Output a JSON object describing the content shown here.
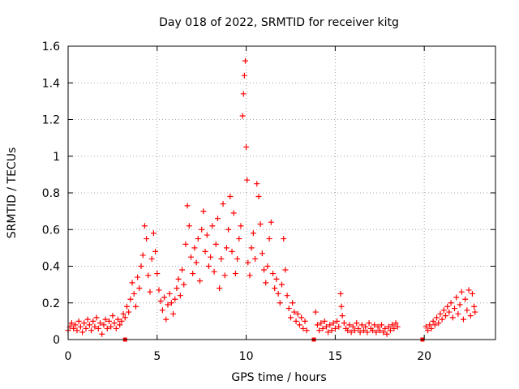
{
  "chart_data": {
    "type": "scatter",
    "title": "Day 018 of 2022, SRMTID for receiver kitg",
    "xlabel": "GPS time / hours",
    "ylabel": "SRMTID / TECUs",
    "xlim": [
      0,
      24
    ],
    "ylim": [
      0,
      1.6
    ],
    "x_ticks": [
      0,
      5,
      10,
      15,
      20
    ],
    "x_tick_labels": [
      "0",
      "5",
      "10",
      "15",
      "20"
    ],
    "y_ticks": [
      0,
      0.2,
      0.4,
      0.6,
      0.8,
      1.0,
      1.2,
      1.4,
      1.6
    ],
    "y_tick_labels": [
      "0",
      "0.2",
      "0.4",
      "0.6",
      "0.8",
      "1",
      "1.2",
      "1.4",
      "1.6"
    ],
    "grid": true,
    "marker": "+",
    "color": "#ff0000",
    "series": [
      {
        "name": "SRMTID",
        "points": [
          [
            0.0,
            0.05
          ],
          [
            0.1,
            0.07
          ],
          [
            0.2,
            0.09
          ],
          [
            0.3,
            0.06
          ],
          [
            0.4,
            0.08
          ],
          [
            0.5,
            0.05
          ],
          [
            0.6,
            0.1
          ],
          [
            0.7,
            0.07
          ],
          [
            0.8,
            0.04
          ],
          [
            0.9,
            0.09
          ],
          [
            1.0,
            0.06
          ],
          [
            1.1,
            0.11
          ],
          [
            1.2,
            0.08
          ],
          [
            1.3,
            0.05
          ],
          [
            1.4,
            0.1
          ],
          [
            1.5,
            0.07
          ],
          [
            1.6,
            0.12
          ],
          [
            1.7,
            0.06
          ],
          [
            1.8,
            0.09
          ],
          [
            1.9,
            0.03
          ],
          [
            2.0,
            0.08
          ],
          [
            2.1,
            0.11
          ],
          [
            2.2,
            0.06
          ],
          [
            2.3,
            0.1
          ],
          [
            2.4,
            0.07
          ],
          [
            2.5,
            0.13
          ],
          [
            2.6,
            0.09
          ],
          [
            2.7,
            0.06
          ],
          [
            2.8,
            0.11
          ],
          [
            2.9,
            0.08
          ],
          [
            3.0,
            0.1
          ],
          [
            3.1,
            0.14
          ],
          [
            3.2,
            0.12
          ],
          [
            3.3,
            0.18
          ],
          [
            3.4,
            0.15
          ],
          [
            3.5,
            0.22
          ],
          [
            3.6,
            0.31
          ],
          [
            3.7,
            0.25
          ],
          [
            3.8,
            0.18
          ],
          [
            3.9,
            0.34
          ],
          [
            4.0,
            0.28
          ],
          [
            4.1,
            0.4
          ],
          [
            4.2,
            0.46
          ],
          [
            4.3,
            0.62
          ],
          [
            4.4,
            0.55
          ],
          [
            4.5,
            0.35
          ],
          [
            4.6,
            0.26
          ],
          [
            4.7,
            0.44
          ],
          [
            4.8,
            0.58
          ],
          [
            4.9,
            0.48
          ],
          [
            5.0,
            0.36
          ],
          [
            5.1,
            0.27
          ],
          [
            5.2,
            0.21
          ],
          [
            5.3,
            0.16
          ],
          [
            5.4,
            0.23
          ],
          [
            5.5,
            0.11
          ],
          [
            5.6,
            0.19
          ],
          [
            5.7,
            0.25
          ],
          [
            5.8,
            0.2
          ],
          [
            5.9,
            0.14
          ],
          [
            6.0,
            0.22
          ],
          [
            6.1,
            0.28
          ],
          [
            6.2,
            0.33
          ],
          [
            6.3,
            0.24
          ],
          [
            6.4,
            0.38
          ],
          [
            6.5,
            0.3
          ],
          [
            6.6,
            0.52
          ],
          [
            6.7,
            0.73
          ],
          [
            6.8,
            0.62
          ],
          [
            6.9,
            0.45
          ],
          [
            7.0,
            0.36
          ],
          [
            7.1,
            0.5
          ],
          [
            7.2,
            0.42
          ],
          [
            7.3,
            0.55
          ],
          [
            7.4,
            0.32
          ],
          [
            7.5,
            0.6
          ],
          [
            7.6,
            0.7
          ],
          [
            7.7,
            0.48
          ],
          [
            7.8,
            0.57
          ],
          [
            7.9,
            0.4
          ],
          [
            8.0,
            0.45
          ],
          [
            8.1,
            0.62
          ],
          [
            8.2,
            0.37
          ],
          [
            8.3,
            0.52
          ],
          [
            8.4,
            0.66
          ],
          [
            8.5,
            0.28
          ],
          [
            8.6,
            0.44
          ],
          [
            8.7,
            0.74
          ],
          [
            8.8,
            0.35
          ],
          [
            8.9,
            0.5
          ],
          [
            9.0,
            0.6
          ],
          [
            9.1,
            0.78
          ],
          [
            9.2,
            0.48
          ],
          [
            9.3,
            0.69
          ],
          [
            9.4,
            0.36
          ],
          [
            9.5,
            0.44
          ],
          [
            9.6,
            0.55
          ],
          [
            9.7,
            0.62
          ],
          [
            9.8,
            1.22
          ],
          [
            9.85,
            1.34
          ],
          [
            9.9,
            1.44
          ],
          [
            9.95,
            1.52
          ],
          [
            10.0,
            1.05
          ],
          [
            10.05,
            0.87
          ],
          [
            10.1,
            0.42
          ],
          [
            10.2,
            0.35
          ],
          [
            10.3,
            0.5
          ],
          [
            10.4,
            0.58
          ],
          [
            10.5,
            0.44
          ],
          [
            10.6,
            0.85
          ],
          [
            10.7,
            0.78
          ],
          [
            10.8,
            0.63
          ],
          [
            10.9,
            0.47
          ],
          [
            11.0,
            0.38
          ],
          [
            11.1,
            0.31
          ],
          [
            11.2,
            0.4
          ],
          [
            11.3,
            0.55
          ],
          [
            11.4,
            0.64
          ],
          [
            11.5,
            0.36
          ],
          [
            11.6,
            0.28
          ],
          [
            11.7,
            0.33
          ],
          [
            11.8,
            0.25
          ],
          [
            11.9,
            0.2
          ],
          [
            12.0,
            0.3
          ],
          [
            12.1,
            0.55
          ],
          [
            12.2,
            0.38
          ],
          [
            12.3,
            0.24
          ],
          [
            12.4,
            0.17
          ],
          [
            12.5,
            0.12
          ],
          [
            12.6,
            0.2
          ],
          [
            12.7,
            0.15
          ],
          [
            12.8,
            0.1
          ],
          [
            12.9,
            0.14
          ],
          [
            13.0,
            0.08
          ],
          [
            13.1,
            0.12
          ],
          [
            13.2,
            0.06
          ],
          [
            13.3,
            0.1
          ],
          [
            13.4,
            0.05
          ],
          [
            13.9,
            0.15
          ],
          [
            14.0,
            0.08
          ],
          [
            14.1,
            0.05
          ],
          [
            14.2,
            0.09
          ],
          [
            14.3,
            0.06
          ],
          [
            14.4,
            0.1
          ],
          [
            14.5,
            0.07
          ],
          [
            14.6,
            0.04
          ],
          [
            14.7,
            0.08
          ],
          [
            14.8,
            0.05
          ],
          [
            14.9,
            0.09
          ],
          [
            15.0,
            0.06
          ],
          [
            15.1,
            0.1
          ],
          [
            15.2,
            0.07
          ],
          [
            15.3,
            0.25
          ],
          [
            15.35,
            0.18
          ],
          [
            15.4,
            0.13
          ],
          [
            15.5,
            0.09
          ],
          [
            15.6,
            0.06
          ],
          [
            15.7,
            0.05
          ],
          [
            15.8,
            0.08
          ],
          [
            15.9,
            0.04
          ],
          [
            16.0,
            0.07
          ],
          [
            16.1,
            0.05
          ],
          [
            16.2,
            0.09
          ],
          [
            16.3,
            0.06
          ],
          [
            16.4,
            0.04
          ],
          [
            16.5,
            0.08
          ],
          [
            16.6,
            0.05
          ],
          [
            16.7,
            0.07
          ],
          [
            16.8,
            0.04
          ],
          [
            16.9,
            0.09
          ],
          [
            17.0,
            0.06
          ],
          [
            17.1,
            0.05
          ],
          [
            17.2,
            0.08
          ],
          [
            17.3,
            0.04
          ],
          [
            17.4,
            0.07
          ],
          [
            17.5,
            0.05
          ],
          [
            17.6,
            0.08
          ],
          [
            17.7,
            0.04
          ],
          [
            17.8,
            0.06
          ],
          [
            17.9,
            0.03
          ],
          [
            18.0,
            0.07
          ],
          [
            18.1,
            0.05
          ],
          [
            18.2,
            0.08
          ],
          [
            18.3,
            0.06
          ],
          [
            18.4,
            0.09
          ],
          [
            18.5,
            0.07
          ],
          [
            20.1,
            0.07
          ],
          [
            20.2,
            0.05
          ],
          [
            20.3,
            0.08
          ],
          [
            20.4,
            0.06
          ],
          [
            20.5,
            0.1
          ],
          [
            20.6,
            0.08
          ],
          [
            20.7,
            0.12
          ],
          [
            20.8,
            0.09
          ],
          [
            20.9,
            0.14
          ],
          [
            21.0,
            0.11
          ],
          [
            21.1,
            0.16
          ],
          [
            21.2,
            0.13
          ],
          [
            21.3,
            0.18
          ],
          [
            21.4,
            0.15
          ],
          [
            21.5,
            0.2
          ],
          [
            21.6,
            0.12
          ],
          [
            21.7,
            0.17
          ],
          [
            21.8,
            0.23
          ],
          [
            21.9,
            0.14
          ],
          [
            22.0,
            0.19
          ],
          [
            22.1,
            0.26
          ],
          [
            22.2,
            0.11
          ],
          [
            22.3,
            0.22
          ],
          [
            22.4,
            0.16
          ],
          [
            22.5,
            0.27
          ],
          [
            22.6,
            0.13
          ],
          [
            22.7,
            0.25
          ],
          [
            22.8,
            0.18
          ],
          [
            22.85,
            0.15
          ]
        ]
      }
    ],
    "axis_markers": [
      3.2,
      13.8,
      19.9
    ]
  }
}
